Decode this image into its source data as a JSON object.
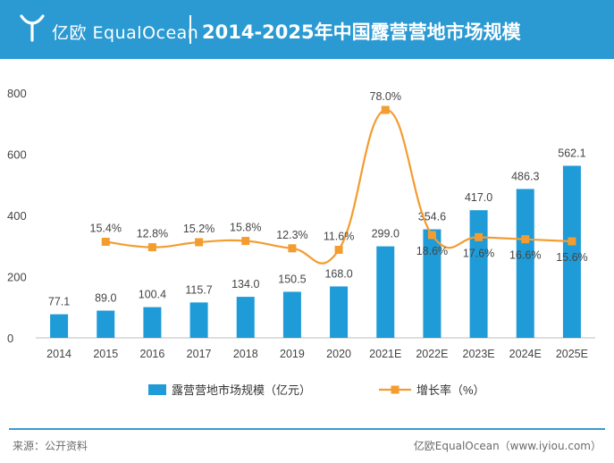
{
  "header": {
    "brand": "亿欧 EqualOcean",
    "title": "2014-2025年中国露营营地市场规模"
  },
  "colors": {
    "header_bg": "#2b9ad3",
    "bar": "#1f9bd7",
    "line": "#f39c30"
  },
  "chart_data": {
    "type": "bar",
    "categories": [
      "2014",
      "2015",
      "2016",
      "2017",
      "2018",
      "2019",
      "2020",
      "2021E",
      "2022E",
      "2023E",
      "2024E",
      "2025E"
    ],
    "series": [
      {
        "name": "露营营地市场规模（亿元）",
        "type": "bar",
        "axis": "left",
        "values": [
          77.1,
          89.0,
          100.4,
          115.7,
          134.0,
          150.5,
          168.0,
          299.0,
          354.6,
          417.0,
          486.3,
          562.1
        ],
        "labels": [
          "77.1",
          "89.0",
          "100.4",
          "115.7",
          "134.0",
          "150.5",
          "168.0",
          "299.0",
          "354.6",
          "417.0",
          "486.3",
          "562.1"
        ]
      },
      {
        "name": "增长率（%）",
        "type": "line",
        "axis": "secondary-hidden",
        "values": [
          null,
          15.4,
          12.8,
          15.2,
          15.8,
          12.3,
          11.6,
          78.0,
          18.6,
          17.6,
          16.6,
          15.6
        ],
        "labels": [
          null,
          "15.4%",
          "12.8%",
          "15.2%",
          "15.8%",
          "12.3%",
          "11.6%",
          "78.0%",
          "18.6%",
          "17.6%",
          "16.6%",
          "15.6%"
        ]
      }
    ],
    "ylim": [
      0,
      800
    ],
    "yticks": [
      "0",
      "200",
      "400",
      "600",
      "800"
    ],
    "legend_position": "bottom-center",
    "grid": false
  },
  "footer": {
    "source": "来源：公开资料",
    "credit": "亿欧EqualOcean（www.iyiou.com）"
  }
}
